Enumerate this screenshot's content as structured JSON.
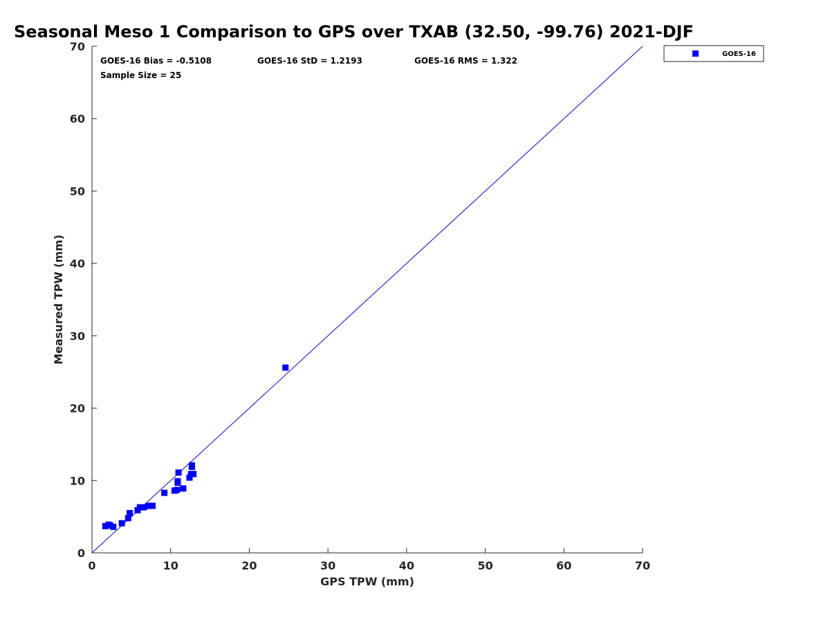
{
  "chart_data": {
    "type": "scatter",
    "title": "Seasonal Meso 1 Comparison to GPS over TXAB (32.50, -99.76) 2021-DJF",
    "xlabel": "GPS TPW (mm)",
    "ylabel": "Measured TPW (mm)",
    "xlim": [
      0,
      70
    ],
    "ylim": [
      0,
      70
    ],
    "xticks": [
      "0",
      "10",
      "20",
      "30",
      "40",
      "50",
      "60",
      "70"
    ],
    "yticks": [
      "0",
      "10",
      "20",
      "30",
      "40",
      "50",
      "60",
      "70"
    ],
    "grid": false,
    "legend_position": "outside-top-right",
    "series": [
      {
        "name": "GOES-16",
        "color": "#0000ff",
        "marker": "square",
        "x": [
          1.7,
          2.1,
          2.7,
          3.8,
          4.6,
          4.8,
          5.8,
          6.1,
          6.6,
          7.2,
          7.7,
          9.2,
          10.5,
          10.8,
          10.9,
          10.9,
          11.0,
          11.6,
          12.4,
          12.6,
          12.7,
          12.9,
          12.7,
          24.6,
          2.3
        ],
        "y": [
          3.7,
          3.9,
          3.6,
          4.1,
          4.8,
          5.5,
          5.9,
          6.3,
          6.3,
          6.5,
          6.5,
          8.3,
          8.6,
          8.7,
          9.7,
          9.9,
          11.1,
          8.9,
          10.4,
          10.9,
          11.9,
          10.9,
          12.1,
          25.6,
          3.8
        ]
      }
    ],
    "reference_line": {
      "type": "one-to-one",
      "color": "#0000ff"
    },
    "annotations": {
      "bias": "GOES-16 Bias = -0.5108",
      "std": "GOES-16 StD = 1.2193",
      "rms": "GOES-16 RMS = 1.322",
      "sample_size": "Sample Size = 25"
    },
    "legend_entries": [
      "GOES-16"
    ]
  }
}
